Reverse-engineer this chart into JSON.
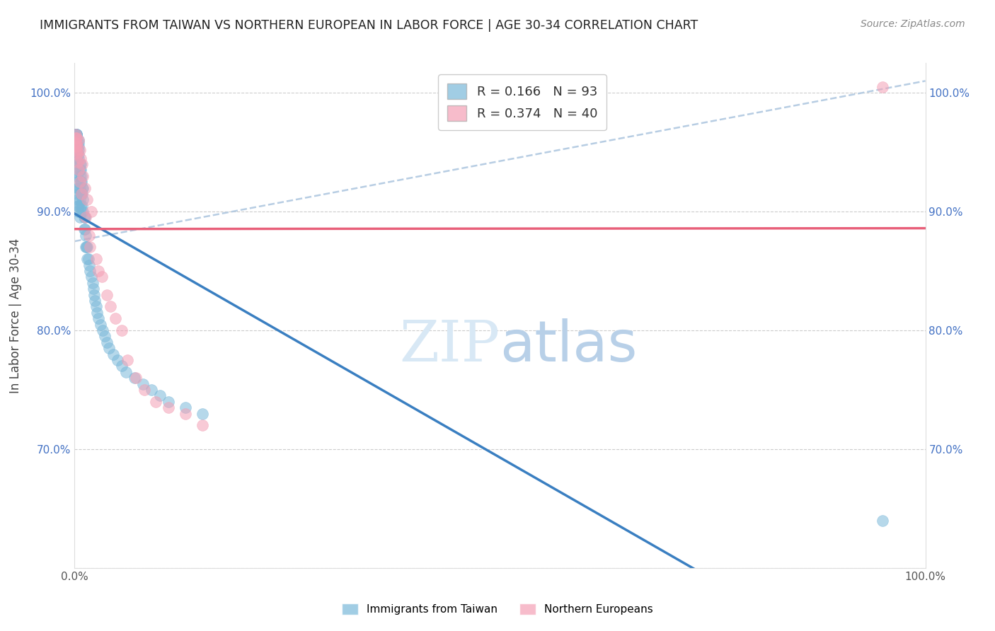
{
  "title": "IMMIGRANTS FROM TAIWAN VS NORTHERN EUROPEAN IN LABOR FORCE | AGE 30-34 CORRELATION CHART",
  "source": "Source: ZipAtlas.com",
  "ylabel": "In Labor Force | Age 30-34",
  "taiwan_R": 0.166,
  "taiwan_N": 93,
  "northern_R": 0.374,
  "northern_N": 40,
  "taiwan_color": "#7ab8d9",
  "northern_color": "#f4a0b5",
  "taiwan_line_color": "#3a7fc1",
  "northern_line_color": "#e8607a",
  "dashed_line_color": "#b0c8e0",
  "watermark_color": "#d8e8f5",
  "taiwan_x": [
    0.001,
    0.001,
    0.001,
    0.001,
    0.001,
    0.001,
    0.001,
    0.002,
    0.002,
    0.002,
    0.002,
    0.002,
    0.002,
    0.002,
    0.002,
    0.003,
    0.003,
    0.003,
    0.003,
    0.003,
    0.003,
    0.003,
    0.004,
    0.004,
    0.004,
    0.004,
    0.004,
    0.005,
    0.005,
    0.005,
    0.005,
    0.005,
    0.005,
    0.005,
    0.005,
    0.006,
    0.006,
    0.006,
    0.006,
    0.006,
    0.006,
    0.007,
    0.007,
    0.007,
    0.007,
    0.007,
    0.008,
    0.008,
    0.008,
    0.008,
    0.009,
    0.009,
    0.009,
    0.01,
    0.01,
    0.01,
    0.011,
    0.011,
    0.012,
    0.012,
    0.013,
    0.013,
    0.014,
    0.015,
    0.015,
    0.016,
    0.017,
    0.018,
    0.02,
    0.021,
    0.022,
    0.023,
    0.024,
    0.025,
    0.026,
    0.028,
    0.03,
    0.033,
    0.035,
    0.038,
    0.04,
    0.045,
    0.05,
    0.055,
    0.06,
    0.07,
    0.08,
    0.09,
    0.1,
    0.11,
    0.13,
    0.15,
    0.95
  ],
  "taiwan_y": [
    0.965,
    0.965,
    0.965,
    0.965,
    0.965,
    0.965,
    0.965,
    0.965,
    0.965,
    0.965,
    0.965,
    0.965,
    0.962,
    0.958,
    0.955,
    0.955,
    0.95,
    0.945,
    0.94,
    0.935,
    0.93,
    0.925,
    0.92,
    0.915,
    0.91,
    0.905,
    0.9,
    0.96,
    0.958,
    0.955,
    0.952,
    0.948,
    0.945,
    0.92,
    0.905,
    0.94,
    0.935,
    0.93,
    0.92,
    0.91,
    0.895,
    0.94,
    0.935,
    0.925,
    0.915,
    0.905,
    0.93,
    0.925,
    0.915,
    0.9,
    0.92,
    0.915,
    0.905,
    0.92,
    0.91,
    0.9,
    0.895,
    0.885,
    0.895,
    0.885,
    0.88,
    0.87,
    0.87,
    0.87,
    0.86,
    0.86,
    0.855,
    0.85,
    0.845,
    0.84,
    0.835,
    0.83,
    0.825,
    0.82,
    0.815,
    0.81,
    0.805,
    0.8,
    0.795,
    0.79,
    0.785,
    0.78,
    0.775,
    0.77,
    0.765,
    0.76,
    0.755,
    0.75,
    0.745,
    0.74,
    0.735,
    0.73,
    0.64
  ],
  "northern_x": [
    0.001,
    0.001,
    0.001,
    0.001,
    0.002,
    0.002,
    0.002,
    0.003,
    0.003,
    0.004,
    0.004,
    0.005,
    0.005,
    0.006,
    0.006,
    0.007,
    0.008,
    0.009,
    0.01,
    0.012,
    0.013,
    0.015,
    0.017,
    0.018,
    0.02,
    0.025,
    0.028,
    0.032,
    0.038,
    0.042,
    0.048,
    0.055,
    0.062,
    0.072,
    0.082,
    0.095,
    0.11,
    0.13,
    0.15,
    0.95
  ],
  "northern_y": [
    0.965,
    0.962,
    0.958,
    0.955,
    0.962,
    0.958,
    0.952,
    0.955,
    0.948,
    0.95,
    0.942,
    0.96,
    0.935,
    0.952,
    0.925,
    0.945,
    0.915,
    0.94,
    0.93,
    0.92,
    0.895,
    0.91,
    0.88,
    0.87,
    0.9,
    0.86,
    0.85,
    0.845,
    0.83,
    0.82,
    0.81,
    0.8,
    0.775,
    0.76,
    0.75,
    0.74,
    0.735,
    0.73,
    0.72,
    1.005
  ],
  "xlim": [
    0.0,
    1.0
  ],
  "ylim": [
    0.6,
    1.025
  ],
  "x_ticks": [
    0.0,
    0.2,
    0.4,
    0.6,
    0.8,
    1.0
  ],
  "x_tick_labels": [
    "0.0%",
    "",
    "",
    "",
    "",
    "100.0%"
  ],
  "y_ticks": [
    0.6,
    0.7,
    0.8,
    0.9,
    1.0
  ],
  "y_tick_labels": [
    "",
    "70.0%",
    "80.0%",
    "90.0%",
    "100.0%"
  ]
}
